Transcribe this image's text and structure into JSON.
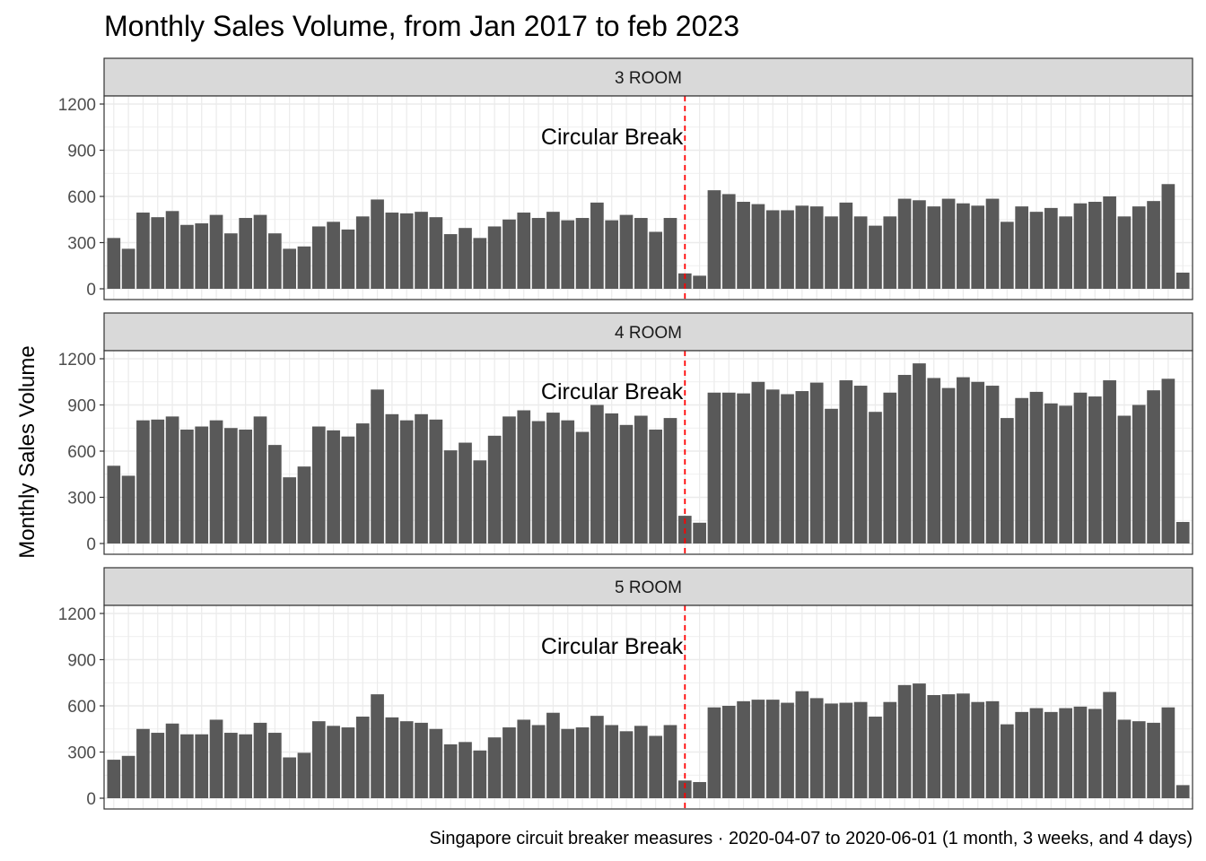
{
  "chart_data": {
    "type": "bar",
    "title": "Monthly Sales Volume, from Jan 2017 to feb 2023",
    "ylabel": "Monthly Sales Volume",
    "xlabel": "",
    "caption": "Singapore circuit breaker measures · 2020-04-07 to 2020-06-01 (1 month, 3 weeks, and 4 days)",
    "x_start": "2017-01",
    "x_end": "2023-02",
    "ylim": [
      0,
      1200
    ],
    "yticks": [
      0,
      300,
      600,
      900,
      1200
    ],
    "grid": true,
    "bar_color": "#595959",
    "strip_color": "#d9d9d9",
    "grid_color": "#ebebeb",
    "reference_line": {
      "x": "2020-04",
      "color": "#ff0000",
      "style": "dashed",
      "label": "Circular Break",
      "label_y": 990
    },
    "facets": [
      {
        "name": "3 ROOM",
        "values": [
          330,
          260,
          495,
          465,
          505,
          415,
          425,
          480,
          360,
          460,
          480,
          360,
          260,
          275,
          405,
          435,
          385,
          470,
          580,
          495,
          490,
          500,
          465,
          355,
          395,
          330,
          405,
          450,
          495,
          460,
          500,
          445,
          460,
          560,
          445,
          480,
          460,
          370,
          460,
          100,
          85,
          640,
          615,
          565,
          550,
          510,
          510,
          540,
          535,
          470,
          560,
          470,
          410,
          470,
          585,
          575,
          535,
          585,
          555,
          540,
          585,
          435,
          535,
          500,
          525,
          470,
          555,
          565,
          600,
          470,
          535,
          570,
          680,
          105
        ]
      },
      {
        "name": "4 ROOM",
        "values": [
          505,
          440,
          800,
          805,
          825,
          740,
          760,
          800,
          750,
          740,
          825,
          640,
          430,
          500,
          760,
          735,
          695,
          780,
          1000,
          840,
          800,
          840,
          805,
          605,
          655,
          540,
          700,
          825,
          865,
          795,
          850,
          800,
          725,
          900,
          845,
          770,
          830,
          740,
          815,
          180,
          135,
          980,
          980,
          975,
          1050,
          1000,
          970,
          990,
          1045,
          875,
          1060,
          1025,
          855,
          980,
          1095,
          1170,
          1075,
          1010,
          1080,
          1050,
          1025,
          815,
          945,
          985,
          910,
          895,
          980,
          955,
          1060,
          830,
          900,
          995,
          1070,
          140
        ]
      },
      {
        "name": "5 ROOM",
        "values": [
          250,
          275,
          450,
          425,
          485,
          415,
          415,
          510,
          425,
          415,
          490,
          425,
          265,
          295,
          500,
          470,
          460,
          530,
          675,
          525,
          500,
          490,
          450,
          350,
          365,
          310,
          395,
          460,
          510,
          475,
          555,
          450,
          460,
          535,
          475,
          435,
          470,
          405,
          475,
          115,
          105,
          590,
          600,
          630,
          640,
          640,
          620,
          695,
          650,
          615,
          620,
          625,
          530,
          625,
          735,
          745,
          670,
          675,
          680,
          625,
          630,
          480,
          560,
          585,
          560,
          585,
          595,
          580,
          690,
          510,
          500,
          490,
          590,
          85
        ]
      }
    ]
  }
}
